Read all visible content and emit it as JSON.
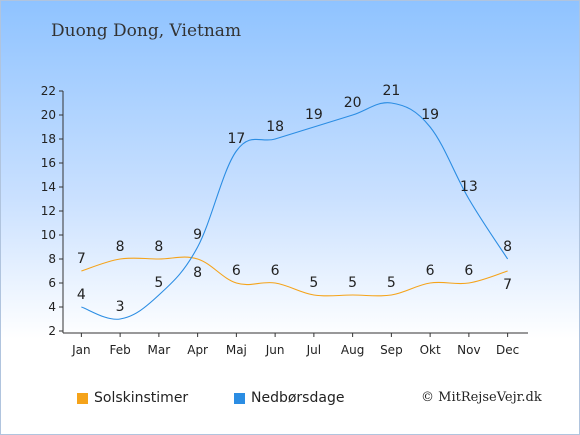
{
  "location_title": "Duong Dong, Vietnam",
  "credit": "© MitRejseVejr.dk",
  "chart_data": {
    "type": "line",
    "categories": [
      "Jan",
      "Feb",
      "Mar",
      "Apr",
      "Maj",
      "Jun",
      "Jul",
      "Aug",
      "Sep",
      "Okt",
      "Nov",
      "Dec"
    ],
    "series": [
      {
        "name": "Solskinstimer",
        "color": "#f5a31a",
        "values": [
          7,
          8,
          8,
          8,
          6,
          6,
          5,
          5,
          5,
          6,
          6,
          7
        ]
      },
      {
        "name": "Nedbørsdage",
        "color": "#2b8de3",
        "values": [
          4,
          3,
          5,
          9,
          17,
          18,
          19,
          20,
          21,
          19,
          13,
          8
        ]
      }
    ],
    "yticks": [
      2,
      4,
      6,
      8,
      10,
      12,
      14,
      16,
      18,
      20,
      22
    ],
    "ylim": [
      2,
      22
    ],
    "grid": false,
    "legend_position": "bottom"
  }
}
